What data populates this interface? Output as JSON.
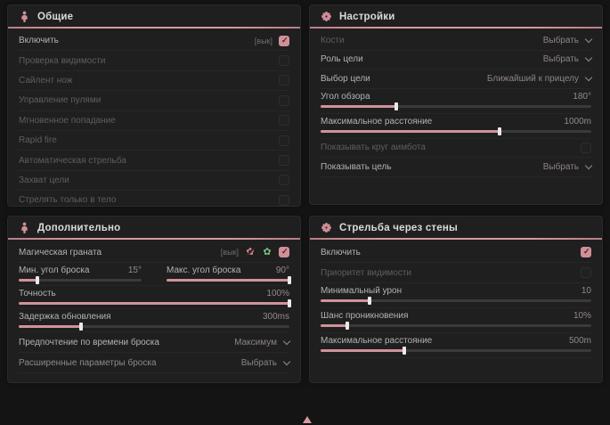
{
  "theme": {
    "accent": "#d18f97",
    "green": "#7fc07f",
    "panel_bg": "#1f1f1f",
    "page_bg": "#141414"
  },
  "panels": {
    "general": {
      "title": "Общие",
      "rows": [
        {
          "label": "Включить",
          "keybind": "[вык]",
          "checked": true
        },
        {
          "label": "Проверка видимости",
          "checked": false
        },
        {
          "label": "Сайлент нож",
          "checked": false
        },
        {
          "label": "Управление пулями",
          "checked": false
        },
        {
          "label": "Мгновенное попадание",
          "checked": false
        },
        {
          "label": "Rapid fire",
          "checked": false
        },
        {
          "label": "Автоматическая стрельба",
          "checked": false
        },
        {
          "label": "Захват цели",
          "checked": false
        },
        {
          "label": "Стрелять только в тело",
          "checked": false
        }
      ]
    },
    "settings": {
      "title": "Настройки",
      "rows": [
        {
          "label": "Кости",
          "value": "Выбрать"
        },
        {
          "label": "Роль цели",
          "value": "Выбрать"
        },
        {
          "label": "Выбор цели",
          "value": "Ближайший к прицелу"
        },
        {
          "label": "Угол обзора",
          "value": "180°",
          "fill": 28
        },
        {
          "label": "Максимальное расстояние",
          "value": "1000m",
          "fill": 66
        },
        {
          "label": "Показывать круг аимбота",
          "checked": false
        },
        {
          "label": "Показывать цель",
          "value": "Выбрать"
        }
      ]
    },
    "additional": {
      "title": "Дополнительно",
      "rows": [
        {
          "label": "Магическая граната",
          "keybind": "[вык]",
          "checked": true
        },
        {
          "label": "Мин. угол броска",
          "value": "15°",
          "fill": 15
        },
        {
          "label": "Макс. угол броска",
          "value": "90°",
          "fill": 100
        },
        {
          "label": "Точность",
          "value": "100%",
          "fill": 100
        },
        {
          "label": "Задержка обновления",
          "value": "300ms",
          "fill": 23
        },
        {
          "label": "Предпочтение по времени броска",
          "value": "Максимум"
        },
        {
          "label": "Расширенные параметры броска",
          "value": "Выбрать"
        }
      ]
    },
    "walls": {
      "title": "Стрельба через стены",
      "rows": [
        {
          "label": "Включить",
          "checked": true
        },
        {
          "label": "Приоритет видимости",
          "checked": false
        },
        {
          "label": "Минимальный урон",
          "value": "10",
          "fill": 18
        },
        {
          "label": "Шанс проникновения",
          "value": "10%",
          "fill": 10
        },
        {
          "label": "Максимальное расстояние",
          "value": "500m",
          "fill": 31
        }
      ]
    }
  }
}
